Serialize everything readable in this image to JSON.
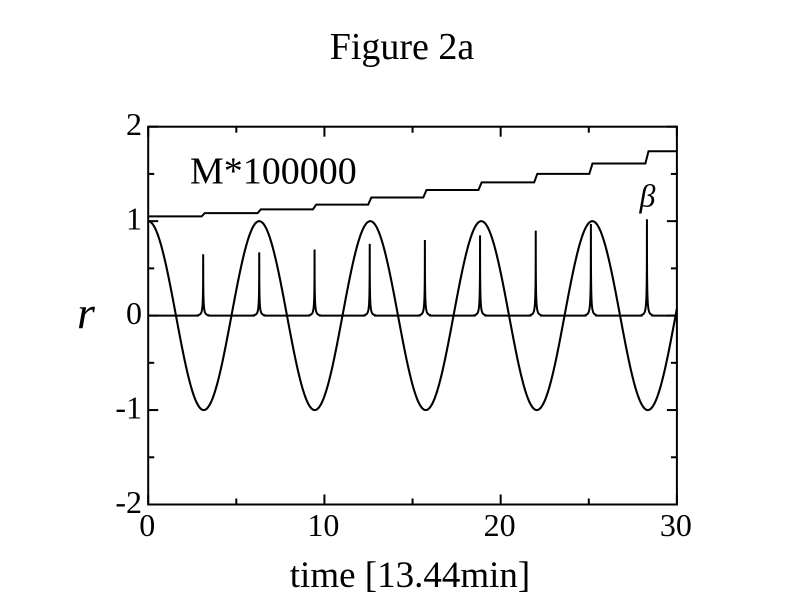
{
  "figure": {
    "background_color": "#ffffff",
    "ink_color": "#000000"
  },
  "chart_data": {
    "type": "line",
    "title": "Figure 2a",
    "xlabel": "time [13.44min]",
    "ylabel": "r",
    "xlim": [
      0,
      30
    ],
    "ylim": [
      -2,
      2
    ],
    "x_ticks_major": [
      0,
      10,
      20,
      30
    ],
    "x_ticks_minor": [
      5,
      15,
      25
    ],
    "x_tick_labels": [
      "0",
      "10",
      "20",
      "30"
    ],
    "y_ticks_major": [
      -2,
      -1,
      0,
      1,
      2
    ],
    "y_ticks_minor": [
      -1.5,
      -0.5,
      0.5,
      1.5
    ],
    "y_tick_labels": [
      "-2",
      "-1",
      "0",
      "1",
      "2"
    ],
    "grid": false,
    "legend": "none",
    "frame": "box with inward mirrored ticks",
    "series": [
      {
        "name": "r",
        "form": "cosine",
        "amplitude": 1.0,
        "period": 6.3,
        "value_at_t0": 1.0,
        "t_range": [
          0,
          30
        ]
      },
      {
        "name": "beta",
        "form": "spike-train",
        "baseline": 0.0,
        "spike_times": [
          3.12,
          6.3,
          9.44,
          12.57,
          15.7,
          18.83,
          21.99,
          25.12,
          28.3
        ],
        "spike_heights": [
          0.65,
          0.67,
          0.7,
          0.76,
          0.8,
          0.85,
          0.9,
          0.97,
          1.02
        ],
        "spike_decay_tau": 0.012,
        "t_range": [
          0,
          30
        ]
      },
      {
        "name": "M*100000",
        "form": "staircase",
        "initial_level": 1.05,
        "step_times": [
          3.12,
          6.3,
          9.44,
          12.57,
          15.7,
          18.83,
          21.99,
          25.12,
          28.3
        ],
        "step_levels": [
          1.085,
          1.125,
          1.175,
          1.25,
          1.33,
          1.41,
          1.5,
          1.61,
          1.74
        ],
        "t_range": [
          0,
          30
        ]
      }
    ],
    "annotations": [
      {
        "text": "M*100000",
        "x": 2.37,
        "y": 1.4,
        "anchor": "start"
      },
      {
        "text": "β",
        "x": 28.33,
        "y": 1.155,
        "anchor": "middle"
      }
    ]
  }
}
